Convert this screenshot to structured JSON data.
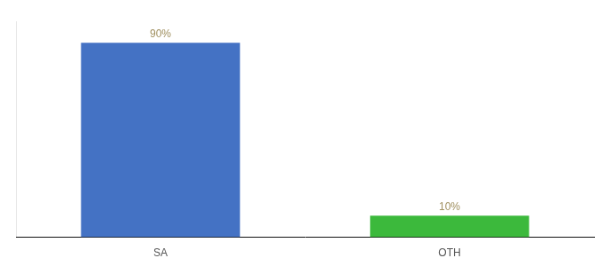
{
  "chart_data": {
    "type": "bar",
    "categories": [
      "SA",
      "OTH"
    ],
    "values": [
      90,
      10
    ],
    "colors": [
      "#4472c4",
      "#3cb93c"
    ],
    "value_labels": [
      "90%",
      "10%"
    ],
    "data_labels": true,
    "ylim": [
      0,
      100
    ],
    "yticks": [],
    "tick_labels": "x",
    "grid": false
  }
}
